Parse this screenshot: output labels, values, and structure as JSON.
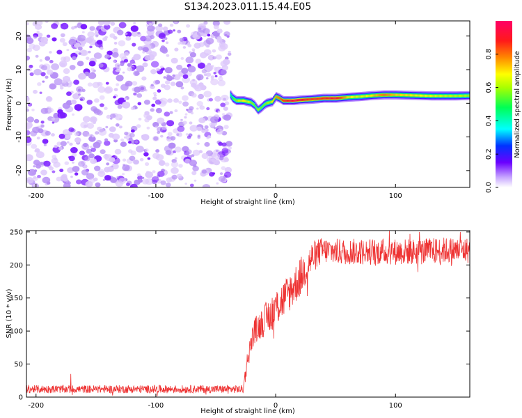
{
  "figure": {
    "title": "S134.2023.011.15.44.E05"
  },
  "chart_data": [
    {
      "type": "heatmap",
      "title": "S134.2023.011.15.44.E05",
      "xlabel": "Height of straight line (km)",
      "ylabel": "Frequency (Hz)",
      "xlim": [
        -208,
        162
      ],
      "ylim": [
        -25,
        24.5
      ],
      "xticks": [
        -200,
        -100,
        0,
        100
      ],
      "yticks": [
        -20,
        -10,
        0,
        10,
        20
      ],
      "grid": false,
      "noise_region_x": [
        -208,
        -38
      ],
      "ridge": {
        "x": [
          -38,
          -36,
          -33,
          -30,
          -27,
          -24,
          -21,
          -18,
          -15,
          -12,
          -10,
          -8,
          -5,
          -3,
          0,
          3,
          6,
          10,
          15,
          20,
          30,
          40,
          50,
          60,
          70,
          80,
          90,
          100,
          110,
          120,
          130,
          140,
          150,
          162
        ],
        "frequency_hz": [
          2.5,
          1.5,
          0.8,
          0.8,
          0.8,
          0.5,
          0.3,
          -0.5,
          -2.0,
          -1.2,
          -0.5,
          0.0,
          0.3,
          0.5,
          2.0,
          1.5,
          0.8,
          0.8,
          0.8,
          1.0,
          1.2,
          1.5,
          1.5,
          1.8,
          2.0,
          2.3,
          2.5,
          2.5,
          2.4,
          2.3,
          2.2,
          2.2,
          2.2,
          2.3
        ],
        "amplitude": [
          0.45,
          0.5,
          0.6,
          0.65,
          0.7,
          0.65,
          0.6,
          0.55,
          0.6,
          0.55,
          0.55,
          0.6,
          0.6,
          0.7,
          0.75,
          0.8,
          0.85,
          0.9,
          0.95,
          0.9,
          0.85,
          0.88,
          0.92,
          0.7,
          0.65,
          0.7,
          0.8,
          0.72,
          0.7,
          0.68,
          0.66,
          0.64,
          0.62,
          0.6
        ]
      },
      "colorbar": {
        "label": "Normalized spectral amplitude",
        "ticks": [
          "0.0",
          "0.2",
          "0.4",
          "0.6",
          "0.8"
        ],
        "range": [
          0,
          1
        ]
      }
    },
    {
      "type": "line",
      "xlabel": "Height of straight line (km)",
      "ylabel": "SNR (10 * v/v)",
      "xlim": [
        -208,
        162
      ],
      "ylim": [
        0,
        252
      ],
      "xticks": [
        -200,
        -100,
        0,
        100
      ],
      "yticks": [
        0,
        50,
        100,
        150,
        200,
        250
      ],
      "grid": false,
      "color": "#ee3333",
      "trend": {
        "x": [
          -208,
          -27,
          -25,
          -22,
          -18,
          -10,
          0,
          10,
          20,
          25,
          30,
          35,
          40,
          50,
          60,
          80,
          100,
          120,
          140,
          162
        ],
        "snr": [
          12,
          12,
          40,
          70,
          100,
          115,
          135,
          155,
          180,
          195,
          210,
          218,
          222,
          220,
          220,
          220,
          220,
          220,
          222,
          222
        ]
      },
      "noise": {
        "x": [
          -208,
          -27,
          -25,
          0,
          20,
          40,
          162
        ],
        "amplitude": [
          6,
          6,
          15,
          30,
          30,
          20,
          20
        ]
      },
      "spikes": [
        {
          "x": -171,
          "snr": 35
        },
        {
          "x": 95,
          "snr": 252
        },
        {
          "x": 112,
          "snr": 247
        },
        {
          "x": 120,
          "snr": 250
        },
        {
          "x": 154,
          "snr": 250
        }
      ]
    }
  ]
}
